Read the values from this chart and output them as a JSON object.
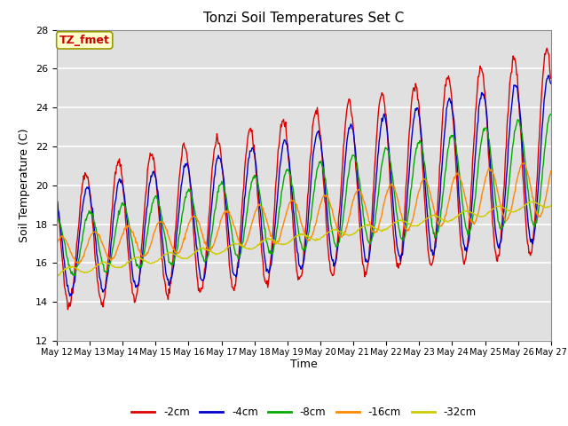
{
  "title": "Tonzi Soil Temperatures Set C",
  "xlabel": "Time",
  "ylabel": "Soil Temperature (C)",
  "ylim": [
    12,
    28
  ],
  "annotation_label": "TZ_fmet",
  "annotation_color": "#cc0000",
  "annotation_bg": "#ffffcc",
  "series_colors": [
    "#dd0000",
    "#0000cc",
    "#00aa00",
    "#ff8800",
    "#cccc00"
  ],
  "series_labels": [
    "-2cm",
    "-4cm",
    "-8cm",
    "-16cm",
    "-32cm"
  ],
  "background_color": "#e0e0e0",
  "grid_color": "#ffffff",
  "yticks": [
    12,
    14,
    16,
    18,
    20,
    22,
    24,
    26,
    28
  ]
}
